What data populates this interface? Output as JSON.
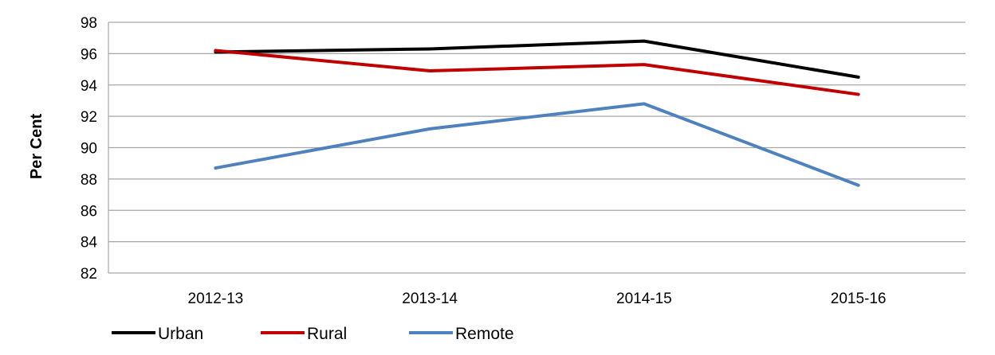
{
  "chart_data": {
    "type": "line",
    "title": "",
    "xlabel": "",
    "ylabel": "Per Cent",
    "categories": [
      "2012-13",
      "2013-14",
      "2014-15",
      "2015-16"
    ],
    "ylim": [
      82,
      98
    ],
    "yticks": [
      82,
      84,
      86,
      88,
      90,
      92,
      94,
      96,
      98
    ],
    "grid": true,
    "legend_position": "bottom-left",
    "series": [
      {
        "name": "Urban",
        "color": "#000000",
        "values": [
          96.1,
          96.3,
          96.8,
          94.5
        ]
      },
      {
        "name": "Rural",
        "color": "#c00000",
        "values": [
          96.2,
          94.9,
          95.3,
          93.4
        ]
      },
      {
        "name": "Remote",
        "color": "#4f81bd",
        "values": [
          88.7,
          91.2,
          92.8,
          87.6
        ]
      }
    ]
  }
}
